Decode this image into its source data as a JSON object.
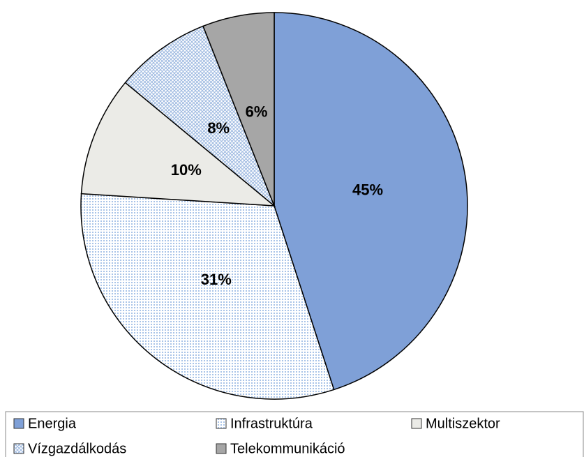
{
  "chart_data": {
    "type": "pie",
    "categories": [
      "Energia",
      "Infrastruktúra",
      "Multiszektor",
      "Vízgazdálkodás",
      "Telekommunikáció"
    ],
    "values": [
      45,
      31,
      10,
      8,
      6
    ],
    "value_labels": [
      "45%",
      "31%",
      "10%",
      "8%",
      "6%"
    ],
    "colors": [
      "#7fa0d7",
      "#a9c4e8",
      "#ebebe7",
      "#9bb8e0",
      "#a6a6a6"
    ],
    "patterns": [
      "solid",
      "dots",
      "solid",
      "crosshatch",
      "solid"
    ],
    "legend": "bottom"
  }
}
